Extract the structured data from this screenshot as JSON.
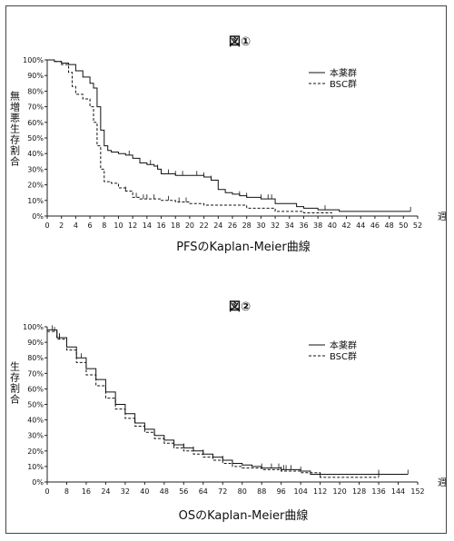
{
  "chart_data": [
    {
      "type": "line",
      "title": "図①",
      "caption": "PFSのKaplan-Meier曲線",
      "ylabel": "無増悪生存割合",
      "xlabel_unit": "週",
      "xlim": [
        0,
        52
      ],
      "ylim": [
        0,
        100
      ],
      "xticks": [
        0,
        2,
        4,
        6,
        8,
        10,
        12,
        14,
        16,
        18,
        20,
        22,
        24,
        26,
        28,
        30,
        32,
        34,
        36,
        38,
        40,
        42,
        44,
        46,
        48,
        50,
        52
      ],
      "yticks": [
        0,
        10,
        20,
        30,
        40,
        50,
        60,
        70,
        80,
        90,
        100
      ],
      "ytick_suffix": "%",
      "legend": [
        "本薬群",
        "BSC群"
      ],
      "series": [
        {
          "name": "本薬群",
          "style": "solid",
          "points": [
            [
              0,
              100
            ],
            [
              1,
              99
            ],
            [
              2,
              98
            ],
            [
              3,
              97
            ],
            [
              4,
              93
            ],
            [
              5,
              89
            ],
            [
              6,
              85
            ],
            [
              6.5,
              82
            ],
            [
              7,
              70
            ],
            [
              7.5,
              55
            ],
            [
              8,
              45
            ],
            [
              8.5,
              42
            ],
            [
              9,
              41
            ],
            [
              10,
              40
            ],
            [
              11,
              39
            ],
            [
              12,
              37
            ],
            [
              13,
              34
            ],
            [
              14,
              33
            ],
            [
              15,
              32
            ],
            [
              15.5,
              30
            ],
            [
              16,
              27
            ],
            [
              18,
              26
            ],
            [
              20,
              26
            ],
            [
              22,
              25
            ],
            [
              23,
              23
            ],
            [
              24,
              17
            ],
            [
              25,
              15
            ],
            [
              26,
              14
            ],
            [
              27,
              13
            ],
            [
              28,
              12
            ],
            [
              30,
              11
            ],
            [
              32,
              8
            ],
            [
              34,
              8
            ],
            [
              35,
              6
            ],
            [
              36,
              5
            ],
            [
              38,
              4
            ],
            [
              40,
              4
            ],
            [
              41,
              3
            ],
            [
              45,
              3
            ],
            [
              51,
              3
            ]
          ],
          "censor": [
            11.5,
            13,
            14.5,
            15.5,
            16,
            17,
            18,
            19,
            21,
            22,
            23,
            27,
            28,
            30,
            31,
            31.5,
            39,
            51
          ]
        },
        {
          "name": "BSC群",
          "style": "dashed",
          "points": [
            [
              0,
              100
            ],
            [
              1,
              99
            ],
            [
              2,
              97
            ],
            [
              3,
              92
            ],
            [
              3.5,
              83
            ],
            [
              4,
              78
            ],
            [
              5,
              75
            ],
            [
              6,
              70
            ],
            [
              6.5,
              60
            ],
            [
              7,
              45
            ],
            [
              7.5,
              30
            ],
            [
              8,
              22
            ],
            [
              9,
              21
            ],
            [
              10,
              18
            ],
            [
              11,
              16
            ],
            [
              12,
              12
            ],
            [
              13,
              11
            ],
            [
              16,
              10
            ],
            [
              18,
              9
            ],
            [
              20,
              8
            ],
            [
              22,
              7
            ],
            [
              24,
              7
            ],
            [
              28,
              5
            ],
            [
              32,
              3
            ],
            [
              36,
              2
            ],
            [
              40,
              2
            ]
          ],
          "censor": [
            11,
            12.5,
            13.5,
            14,
            15,
            17,
            18.5,
            19.5
          ]
        }
      ]
    },
    {
      "type": "line",
      "title": "図②",
      "caption": "OSのKaplan-Meier曲線",
      "ylabel": "生存割合",
      "xlabel_unit": "週",
      "xlim": [
        0,
        152
      ],
      "ylim": [
        0,
        100
      ],
      "xticks": [
        0,
        8,
        16,
        24,
        32,
        40,
        48,
        56,
        64,
        72,
        80,
        88,
        96,
        104,
        112,
        120,
        128,
        136,
        144,
        152
      ],
      "yticks": [
        0,
        10,
        20,
        30,
        40,
        50,
        60,
        70,
        80,
        90,
        100
      ],
      "ytick_suffix": "%",
      "legend": [
        "本薬群",
        "BSC群"
      ],
      "series": [
        {
          "name": "本薬群",
          "style": "solid",
          "points": [
            [
              0,
              98
            ],
            [
              4,
              93
            ],
            [
              8,
              87
            ],
            [
              12,
              80
            ],
            [
              16,
              73
            ],
            [
              20,
              66
            ],
            [
              24,
              58
            ],
            [
              28,
              50
            ],
            [
              32,
              44
            ],
            [
              36,
              38
            ],
            [
              40,
              34
            ],
            [
              44,
              30
            ],
            [
              48,
              27
            ],
            [
              52,
              24
            ],
            [
              56,
              22
            ],
            [
              60,
              20
            ],
            [
              64,
              18
            ],
            [
              68,
              16
            ],
            [
              72,
              14
            ],
            [
              76,
              12
            ],
            [
              80,
              11
            ],
            [
              84,
              10
            ],
            [
              88,
              9
            ],
            [
              96,
              8
            ],
            [
              100,
              8
            ],
            [
              104,
              7
            ],
            [
              108,
              5
            ],
            [
              136,
              5
            ],
            [
              144,
              5
            ],
            [
              148,
              5
            ]
          ],
          "censor": [
            2,
            4,
            5,
            14,
            16,
            24,
            28,
            36,
            40,
            44,
            56,
            60,
            64,
            72,
            88,
            92,
            95,
            97,
            98,
            100,
            104,
            136,
            148
          ]
        },
        {
          "name": "BSC群",
          "style": "dashed",
          "points": [
            [
              0,
              97
            ],
            [
              4,
              92
            ],
            [
              8,
              85
            ],
            [
              12,
              77
            ],
            [
              16,
              69
            ],
            [
              20,
              62
            ],
            [
              24,
              54
            ],
            [
              28,
              47
            ],
            [
              32,
              41
            ],
            [
              36,
              36
            ],
            [
              40,
              32
            ],
            [
              44,
              28
            ],
            [
              48,
              25
            ],
            [
              52,
              22
            ],
            [
              56,
              20
            ],
            [
              60,
              18
            ],
            [
              64,
              16
            ],
            [
              68,
              14
            ],
            [
              72,
              12
            ],
            [
              76,
              10
            ],
            [
              80,
              9
            ],
            [
              88,
              8
            ],
            [
              96,
              7
            ],
            [
              104,
              6
            ],
            [
              112,
              3
            ],
            [
              120,
              3
            ],
            [
              128,
              3
            ],
            [
              136,
              3
            ]
          ],
          "censor": [
            3,
            5,
            96,
            112,
            136
          ]
        }
      ]
    }
  ]
}
